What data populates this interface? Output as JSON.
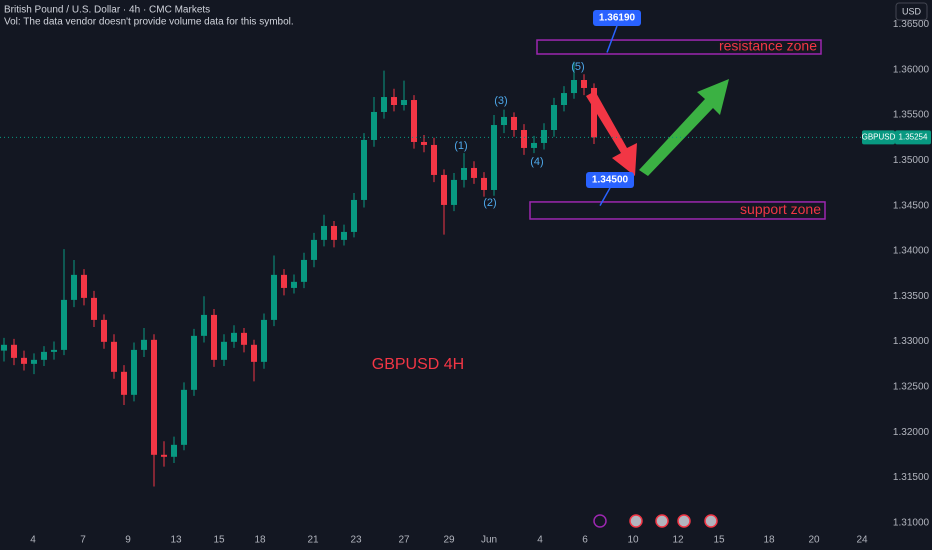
{
  "chart_data": {
    "type": "candlestick",
    "title": "British Pound / U.S. Dollar · 4h · CMC Markets",
    "subtitle": "Vol: The data vendor doesn't provide volume data for this symbol.",
    "currency": "USD",
    "symbol": "GBPUSD",
    "last_price": 1.35254,
    "up_color": "#089981",
    "down_color": "#f23645",
    "grid": false,
    "open": [
      1.329,
      1.32964,
      1.3282,
      1.32754,
      1.32798,
      1.32886,
      1.32908,
      1.3346,
      1.33736,
      1.33482,
      1.33239,
      1.32997,
      1.32666,
      1.32412,
      1.32908,
      1.33019,
      1.3175,
      1.31728,
      1.3186,
      1.32467,
      1.33063,
      1.33294,
      1.32798,
      1.32997,
      1.33096,
      1.32964,
      1.32776,
      1.33239,
      1.33736,
      1.33592,
      1.33659,
      1.33901,
      1.34122,
      1.34276,
      1.34122,
      1.3421,
      1.34563,
      1.35225,
      1.35534,
      1.35699,
      1.35611,
      1.35666,
      1.35203,
      1.3517,
      1.34839,
      1.34508,
      1.34784,
      1.34916,
      1.34806,
      1.34673,
      1.3539,
      1.35479,
      1.35335,
      1.35137,
      1.35192,
      1.35335,
      1.35611,
      1.35743,
      1.35887,
      1.35799
    ],
    "high": [
      1.3304,
      1.3303,
      1.329,
      1.3287,
      1.3295,
      1.33,
      1.3402,
      1.339,
      1.338,
      1.3356,
      1.333,
      1.3308,
      1.3274,
      1.3299,
      1.3315,
      1.3308,
      1.319,
      1.3195,
      1.3255,
      1.3314,
      1.335,
      1.3336,
      1.3308,
      1.3318,
      1.3315,
      1.3302,
      1.3331,
      1.3395,
      1.338,
      1.3374,
      1.3398,
      1.342,
      1.344,
      1.3433,
      1.3429,
      1.3464,
      1.353,
      1.357,
      1.3599,
      1.3579,
      1.3588,
      1.3572,
      1.3528,
      1.3525,
      1.349,
      1.3486,
      1.3508,
      1.3499,
      1.3487,
      1.355,
      1.3556,
      1.3553,
      1.354,
      1.3527,
      1.3541,
      1.3569,
      1.3582,
      1.3609,
      1.3595,
      1.3585
    ],
    "low": [
      1.3278,
      1.3274,
      1.3268,
      1.3264,
      1.3273,
      1.328,
      1.3285,
      1.3338,
      1.334,
      1.3316,
      1.3292,
      1.3259,
      1.323,
      1.3234,
      1.3283,
      1.314,
      1.3162,
      1.3166,
      1.318,
      1.324,
      1.3299,
      1.3272,
      1.3273,
      1.3293,
      1.3288,
      1.3256,
      1.327,
      1.3317,
      1.3351,
      1.3353,
      1.3359,
      1.3382,
      1.3405,
      1.3404,
      1.3406,
      1.3415,
      1.3448,
      1.3515,
      1.3546,
      1.3554,
      1.3555,
      1.3513,
      1.3509,
      1.3476,
      1.3418,
      1.3444,
      1.347,
      1.3474,
      1.346,
      1.3461,
      1.353,
      1.3526,
      1.3506,
      1.3508,
      1.3512,
      1.3526,
      1.3554,
      1.3568,
      1.3572,
      1.3518
    ],
    "close": [
      1.32964,
      1.3282,
      1.32754,
      1.32798,
      1.32886,
      1.32908,
      1.3346,
      1.33736,
      1.33482,
      1.33239,
      1.32997,
      1.32666,
      1.32412,
      1.32908,
      1.33019,
      1.3175,
      1.31728,
      1.3186,
      1.32467,
      1.33063,
      1.33294,
      1.32798,
      1.32997,
      1.33096,
      1.32964,
      1.32776,
      1.33239,
      1.33736,
      1.33592,
      1.33659,
      1.33901,
      1.34122,
      1.34276,
      1.34122,
      1.3421,
      1.34563,
      1.35225,
      1.35534,
      1.35699,
      1.35611,
      1.35666,
      1.35203,
      1.3517,
      1.34839,
      1.34508,
      1.34784,
      1.34916,
      1.34806,
      1.34673,
      1.3539,
      1.35479,
      1.35335,
      1.35137,
      1.35192,
      1.35335,
      1.35611,
      1.35743,
      1.35887,
      1.35799,
      1.35254
    ],
    "xlim": [
      -0.4,
      88.6
    ],
    "xticks": [
      {
        "value": 2.9,
        "label": "4"
      },
      {
        "value": 7.9,
        "label": "7"
      },
      {
        "value": 12.4,
        "label": "9"
      },
      {
        "value": 17.2,
        "label": "13"
      },
      {
        "value": 21.5,
        "label": "15"
      },
      {
        "value": 25.6,
        "label": "18"
      },
      {
        "value": 30.9,
        "label": "21"
      },
      {
        "value": 35.2,
        "label": "23"
      },
      {
        "value": 40,
        "label": "27"
      },
      {
        "value": 44.5,
        "label": "29"
      },
      {
        "value": 48.5,
        "label": "Jun"
      },
      {
        "value": 53.6,
        "label": "4"
      },
      {
        "value": 58.1,
        "label": "6"
      },
      {
        "value": 62.9,
        "label": "10"
      },
      {
        "value": 67.4,
        "label": "12"
      },
      {
        "value": 71.5,
        "label": "15"
      },
      {
        "value": 76.5,
        "label": "18"
      },
      {
        "value": 81,
        "label": "20"
      },
      {
        "value": 85.8,
        "label": "24"
      }
    ],
    "ylim": [
      1.3092,
      1.3677
    ],
    "yticks": [
      {
        "value": 1.31,
        "label": "1.31000"
      },
      {
        "value": 1.315,
        "label": "1.31500"
      },
      {
        "value": 1.32,
        "label": "1.32000"
      },
      {
        "value": 1.325,
        "label": "1.32500"
      },
      {
        "value": 1.33,
        "label": "1.33000"
      },
      {
        "value": 1.335,
        "label": "1.33500"
      },
      {
        "value": 1.34,
        "label": "1.34000"
      },
      {
        "value": 1.345,
        "label": "1.34500"
      },
      {
        "value": 1.35,
        "label": "1.35000"
      },
      {
        "value": 1.355,
        "label": "1.35500"
      },
      {
        "value": 1.36,
        "label": "1.36000"
      },
      {
        "value": 1.365,
        "label": "1.36500"
      }
    ],
    "zones": [
      {
        "label": "resistance zone",
        "price": {
          "value": 1.3619,
          "label": "1.36190"
        },
        "range": [
          1.36174,
          1.36328
        ],
        "x": [
          53.3,
          81.7
        ]
      },
      {
        "label": "support zone",
        "price": {
          "value": 1.345,
          "label": "1.34500"
        },
        "range": [
          1.34353,
          1.34541
        ],
        "x": [
          52.6,
          82.1
        ]
      }
    ],
    "waves": [
      {
        "label": "(1)",
        "x": 45.7,
        "y": 1.3516
      },
      {
        "label": "(2)",
        "x": 48.6,
        "y": 1.3453
      },
      {
        "label": "(3)",
        "x": 49.7,
        "y": 1.35655
      },
      {
        "label": "(4)",
        "x": 53.3,
        "y": 1.3498
      },
      {
        "label": "(5)",
        "x": 57.4,
        "y": 1.3603
      }
    ],
    "annotations": [
      {
        "text": "GBPUSD 4H",
        "x": 41.4,
        "y": 1.32743
      }
    ]
  }
}
